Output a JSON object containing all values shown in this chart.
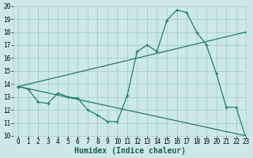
{
  "title": "",
  "xlabel": "Humidex (Indice chaleur)",
  "ylabel": "",
  "bg_color": "#cce8e8",
  "grid_color": "#aacccc",
  "line_color": "#1a7f6e",
  "xlim": [
    -0.5,
    23
  ],
  "ylim": [
    10,
    20
  ],
  "xticks": [
    0,
    1,
    2,
    3,
    4,
    5,
    6,
    7,
    8,
    9,
    10,
    11,
    12,
    13,
    14,
    15,
    16,
    17,
    18,
    19,
    20,
    21,
    22,
    23
  ],
  "yticks": [
    10,
    11,
    12,
    13,
    14,
    15,
    16,
    17,
    18,
    19,
    20
  ],
  "line1_x": [
    0,
    1,
    2,
    3,
    4,
    5,
    6,
    7,
    8,
    9,
    10,
    11,
    12,
    13,
    14,
    15,
    16,
    17,
    18,
    19,
    20,
    21,
    22,
    23
  ],
  "line1_y": [
    13.8,
    13.6,
    12.6,
    12.5,
    13.3,
    13.0,
    12.9,
    12.0,
    11.6,
    11.1,
    11.1,
    13.1,
    16.5,
    17.0,
    16.5,
    18.9,
    19.7,
    19.5,
    18.0,
    17.0,
    14.8,
    12.2,
    12.2,
    9.8
  ],
  "line2_x": [
    0,
    23
  ],
  "line2_y": [
    13.8,
    10.0
  ],
  "line3_x": [
    0,
    23
  ],
  "line3_y": [
    13.8,
    18.0
  ],
  "tick_fontsize": 5.5,
  "xlabel_fontsize": 7.0
}
